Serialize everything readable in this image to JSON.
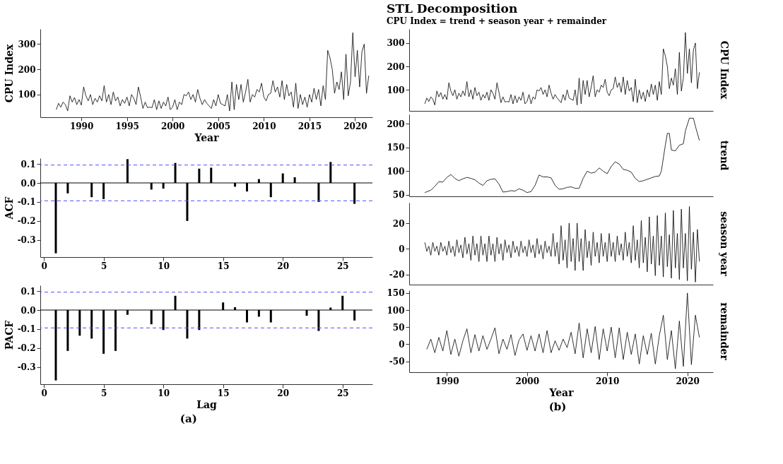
{
  "chart_data": [
    {
      "type": "line",
      "ylabel": "CPU Index",
      "xlabel": "Year",
      "color": "#000000",
      "xlim": [
        1985.5,
        2021.9
      ],
      "xticks": [
        1990,
        1995,
        2000,
        2005,
        2010,
        2015,
        2020
      ],
      "ylim": [
        10,
        360
      ],
      "yticks": [
        100,
        200,
        300
      ],
      "x": [
        1987.25,
        1987.5,
        1987.75,
        1988,
        1988.25,
        1988.5,
        1988.75,
        1989,
        1989.25,
        1989.5,
        1989.75,
        1990,
        1990.25,
        1990.5,
        1990.75,
        1991,
        1991.25,
        1991.5,
        1991.75,
        1992,
        1992.25,
        1992.5,
        1992.75,
        1993,
        1993.25,
        1993.5,
        1993.75,
        1994,
        1994.25,
        1994.5,
        1994.75,
        1995,
        1995.25,
        1995.5,
        1995.75,
        1996,
        1996.25,
        1996.5,
        1996.75,
        1997,
        1997.25,
        1997.5,
        1997.75,
        1998,
        1998.25,
        1998.5,
        1998.75,
        1999,
        1999.25,
        1999.5,
        1999.75,
        2000,
        2000.25,
        2000.5,
        2000.75,
        2001,
        2001.25,
        2001.5,
        2001.75,
        2002,
        2002.25,
        2002.5,
        2002.75,
        2003,
        2003.25,
        2003.5,
        2003.75,
        2004,
        2004.25,
        2004.5,
        2004.75,
        2005,
        2005.25,
        2005.5,
        2005.75,
        2006,
        2006.25,
        2006.5,
        2006.75,
        2007,
        2007.25,
        2007.5,
        2007.75,
        2008,
        2008.25,
        2008.5,
        2008.75,
        2009,
        2009.25,
        2009.5,
        2009.75,
        2010,
        2010.25,
        2010.5,
        2010.75,
        2011,
        2011.25,
        2011.5,
        2011.75,
        2012,
        2012.25,
        2012.5,
        2012.75,
        2013,
        2013.25,
        2013.5,
        2013.75,
        2014,
        2014.25,
        2014.5,
        2014.75,
        2015,
        2015.25,
        2015.5,
        2015.75,
        2016,
        2016.25,
        2016.5,
        2016.75,
        2017,
        2017.25,
        2017.5,
        2017.75,
        2018,
        2018.25,
        2018.5,
        2018.75,
        2019,
        2019.25,
        2019.5,
        2019.75,
        2020,
        2020.25,
        2020.5,
        2020.75,
        2021,
        2021.25,
        2021.5
      ],
      "values": [
        40,
        65,
        50,
        70,
        60,
        35,
        95,
        70,
        88,
        60,
        80,
        58,
        130,
        95,
        75,
        100,
        60,
        85,
        70,
        95,
        75,
        135,
        70,
        100,
        60,
        110,
        75,
        90,
        55,
        80,
        65,
        90,
        55,
        100,
        85,
        60,
        130,
        90,
        45,
        70,
        48,
        50,
        48,
        80,
        40,
        75,
        45,
        70,
        55,
        90,
        40,
        50,
        80,
        40,
        70,
        60,
        100,
        95,
        110,
        80,
        100,
        70,
        120,
        85,
        60,
        80,
        65,
        55,
        45,
        80,
        55,
        100,
        65,
        60,
        55,
        100,
        35,
        150,
        40,
        140,
        80,
        140,
        70,
        110,
        160,
        70,
        100,
        90,
        120,
        110,
        145,
        90,
        75,
        100,
        105,
        155,
        110,
        130,
        90,
        155,
        80,
        140,
        95,
        110,
        50,
        145,
        45,
        100,
        60,
        90,
        50,
        100,
        70,
        125,
        80,
        120,
        55,
        135,
        80,
        275,
        245,
        200,
        105,
        150,
        120,
        190,
        80,
        260,
        95,
        150,
        345,
        170,
        275,
        130,
        270,
        300,
        105,
        175
      ]
    },
    {
      "type": "bar",
      "ylabel": "ACF",
      "color": "#000000",
      "xlim": [
        -0.3,
        27.5
      ],
      "xticks": [
        0,
        5,
        10,
        15,
        20,
        25
      ],
      "ylim": [
        -0.39,
        0.13
      ],
      "yticks": [
        -0.3,
        -0.2,
        -0.1,
        {
          "value": 0,
          "label": "0.0"
        },
        0.1
      ],
      "x": [
        1,
        2,
        3,
        4,
        5,
        6,
        7,
        8,
        9,
        10,
        11,
        12,
        13,
        14,
        15,
        16,
        17,
        18,
        19,
        20,
        21,
        22,
        23,
        24,
        25,
        26
      ],
      "values": [
        -0.37,
        -0.055,
        0,
        -0.075,
        -0.085,
        0,
        0.125,
        0,
        -0.035,
        -0.03,
        0.105,
        -0.2,
        0.075,
        0.08,
        0,
        -0.02,
        -0.045,
        0.02,
        -0.075,
        0.05,
        0.03,
        0,
        -0.1,
        0.11,
        0,
        -0.11
      ],
      "ref_lines": [
        {
          "axis": "y",
          "value": 0,
          "color": "#000000",
          "line_style": "solid"
        },
        {
          "axis": "y",
          "value": 0.094,
          "color": "#4d4dff",
          "line_style": "dashed"
        },
        {
          "axis": "y",
          "value": -0.094,
          "color": "#4d4dff",
          "line_style": "dashed"
        }
      ]
    },
    {
      "type": "bar",
      "ylabel": "PACF",
      "xlabel": "Lag",
      "color": "#000000",
      "xlim": [
        -0.3,
        27.5
      ],
      "xticks": [
        0,
        5,
        10,
        15,
        20,
        25
      ],
      "ylim": [
        -0.39,
        0.13
      ],
      "yticks": [
        -0.3,
        -0.2,
        -0.1,
        {
          "value": 0,
          "label": "0.0"
        },
        0.1
      ],
      "x": [
        1,
        2,
        3,
        4,
        5,
        6,
        7,
        8,
        9,
        10,
        11,
        12,
        13,
        14,
        15,
        16,
        17,
        18,
        19,
        20,
        21,
        22,
        23,
        24,
        25,
        26
      ],
      "values": [
        -0.37,
        -0.215,
        -0.135,
        -0.15,
        -0.23,
        -0.215,
        -0.025,
        0,
        -0.075,
        -0.105,
        0.075,
        -0.15,
        -0.105,
        0,
        0.04,
        0.015,
        -0.065,
        -0.035,
        -0.065,
        0,
        0,
        -0.03,
        -0.11,
        0.013,
        0.075,
        -0.055
      ],
      "ref_lines": [
        {
          "axis": "y",
          "value": 0,
          "color": "#000000",
          "line_style": "solid"
        },
        {
          "axis": "y",
          "value": 0.094,
          "color": "#4d4dff",
          "line_style": "dashed"
        },
        {
          "axis": "y",
          "value": -0.094,
          "color": "#4d4dff",
          "line_style": "dashed"
        }
      ],
      "annotations": [
        "(a)"
      ]
    },
    {
      "type": "line",
      "title": "STL Decomposition",
      "subtitle": "CPU Index = trend + season year + remainder",
      "ylabel": "CPU Index",
      "color": "#000000",
      "xlim": [
        1985.3,
        2023.2
      ],
      "xticks": [
        1990,
        2000,
        2010,
        2020
      ],
      "ylim": [
        10,
        360
      ],
      "yticks": [
        100,
        200,
        300
      ],
      "tick_labels": "y",
      "x": [
        1987.25,
        1987.5,
        1987.75,
        1988,
        1988.25,
        1988.5,
        1988.75,
        1989,
        1989.25,
        1989.5,
        1989.75,
        1990,
        1990.25,
        1990.5,
        1990.75,
        1991,
        1991.25,
        1991.5,
        1991.75,
        1992,
        1992.25,
        1992.5,
        1992.75,
        1993,
        1993.25,
        1993.5,
        1993.75,
        1994,
        1994.25,
        1994.5,
        1994.75,
        1995,
        1995.25,
        1995.5,
        1995.75,
        1996,
        1996.25,
        1996.5,
        1996.75,
        1997,
        1997.25,
        1997.5,
        1997.75,
        1998,
        1998.25,
        1998.5,
        1998.75,
        1999,
        1999.25,
        1999.5,
        1999.75,
        2000,
        2000.25,
        2000.5,
        2000.75,
        2001,
        2001.25,
        2001.5,
        2001.75,
        2002,
        2002.25,
        2002.5,
        2002.75,
        2003,
        2003.25,
        2003.5,
        2003.75,
        2004,
        2004.25,
        2004.5,
        2004.75,
        2005,
        2005.25,
        2005.5,
        2005.75,
        2006,
        2006.25,
        2006.5,
        2006.75,
        2007,
        2007.25,
        2007.5,
        2007.75,
        2008,
        2008.25,
        2008.5,
        2008.75,
        2009,
        2009.25,
        2009.5,
        2009.75,
        2010,
        2010.25,
        2010.5,
        2010.75,
        2011,
        2011.25,
        2011.5,
        2011.75,
        2012,
        2012.25,
        2012.5,
        2012.75,
        2013,
        2013.25,
        2013.5,
        2013.75,
        2014,
        2014.25,
        2014.5,
        2014.75,
        2015,
        2015.25,
        2015.5,
        2015.75,
        2016,
        2016.25,
        2016.5,
        2016.75,
        2017,
        2017.25,
        2017.5,
        2017.75,
        2018,
        2018.25,
        2018.5,
        2018.75,
        2019,
        2019.25,
        2019.5,
        2019.75,
        2020,
        2020.25,
        2020.5,
        2020.75,
        2021,
        2021.25,
        2021.5
      ],
      "values": [
        40,
        65,
        50,
        70,
        60,
        35,
        95,
        70,
        88,
        60,
        80,
        58,
        130,
        95,
        75,
        100,
        60,
        85,
        70,
        95,
        75,
        135,
        70,
        100,
        60,
        110,
        75,
        90,
        55,
        80,
        65,
        90,
        55,
        100,
        85,
        60,
        130,
        90,
        45,
        70,
        48,
        50,
        48,
        80,
        40,
        75,
        45,
        70,
        55,
        90,
        40,
        50,
        80,
        40,
        70,
        60,
        100,
        95,
        110,
        80,
        100,
        70,
        120,
        85,
        60,
        80,
        65,
        55,
        45,
        80,
        55,
        100,
        65,
        60,
        55,
        100,
        35,
        150,
        40,
        140,
        80,
        140,
        70,
        110,
        160,
        70,
        100,
        90,
        120,
        110,
        145,
        90,
        75,
        100,
        105,
        155,
        110,
        130,
        90,
        155,
        80,
        140,
        95,
        110,
        50,
        145,
        45,
        100,
        60,
        90,
        50,
        100,
        70,
        125,
        80,
        120,
        55,
        135,
        80,
        275,
        245,
        200,
        105,
        150,
        120,
        190,
        80,
        260,
        95,
        150,
        345,
        170,
        275,
        130,
        270,
        300,
        105,
        175
      ]
    },
    {
      "type": "line",
      "ylabel": "trend",
      "color": "#000000",
      "xlim": [
        1985.3,
        2023.2
      ],
      "xticks": [
        1990,
        2000,
        2010,
        2020
      ],
      "ylim": [
        47,
        220
      ],
      "yticks": [
        50,
        100,
        150,
        200
      ],
      "tick_labels": "y",
      "x": [
        1987.25,
        1988,
        1988.5,
        1989,
        1989.5,
        1990,
        1990.5,
        1991,
        1991.5,
        1992,
        1992.5,
        1993,
        1993.5,
        1994,
        1994.5,
        1995,
        1995.5,
        1996,
        1996.5,
        1997,
        1997.5,
        1998,
        1998.5,
        1999,
        1999.5,
        2000,
        2000.5,
        2001,
        2001.5,
        2002,
        2002.5,
        2003,
        2003.5,
        2004,
        2004.5,
        2005,
        2005.5,
        2006,
        2006.5,
        2007,
        2007.5,
        2008,
        2008.5,
        2009,
        2009.5,
        2010,
        2010.5,
        2011,
        2011.5,
        2012,
        2012.5,
        2013,
        2013.5,
        2014,
        2014.5,
        2015,
        2015.5,
        2016,
        2016.5,
        2016.75,
        2017.25,
        2017.5,
        2017.75,
        2018,
        2018.5,
        2019,
        2019.5,
        2019.75,
        2020.25,
        2020.75,
        2021,
        2021.5
      ],
      "values": [
        55,
        60,
        68,
        78,
        77,
        87,
        93,
        85,
        80,
        84,
        87,
        85,
        82,
        75,
        70,
        80,
        83,
        84,
        73,
        56,
        57,
        59,
        58,
        63,
        60,
        55,
        57,
        70,
        92,
        88,
        88,
        86,
        70,
        62,
        63,
        66,
        67,
        64,
        64,
        85,
        100,
        96,
        98,
        107,
        100,
        95,
        110,
        120,
        115,
        104,
        102,
        98,
        85,
        78,
        80,
        83,
        86,
        89,
        90,
        100,
        155,
        180,
        180,
        145,
        143,
        155,
        158,
        185,
        212,
        212,
        195,
        165
      ]
    },
    {
      "type": "line",
      "ylabel": "season year",
      "color": "#000000",
      "xlim": [
        1985.3,
        2023.2
      ],
      "xticks": [
        1990,
        2000,
        2010,
        2020
      ],
      "ylim": [
        -28,
        36
      ],
      "yticks": [
        -20,
        0,
        20
      ],
      "tick_labels": "y",
      "x": [
        1987.25,
        1987.5,
        1987.75,
        1988,
        1988.25,
        1988.5,
        1988.75,
        1989,
        1989.25,
        1989.5,
        1989.75,
        1990,
        1990.25,
        1990.5,
        1990.75,
        1991,
        1991.25,
        1991.5,
        1991.75,
        1992,
        1992.25,
        1992.5,
        1992.75,
        1993,
        1993.25,
        1993.5,
        1993.75,
        1994,
        1994.25,
        1994.5,
        1994.75,
        1995,
        1995.25,
        1995.5,
        1995.75,
        1996,
        1996.25,
        1996.5,
        1996.75,
        1997,
        1997.25,
        1997.5,
        1997.75,
        1998,
        1998.25,
        1998.5,
        1998.75,
        1999,
        1999.25,
        1999.5,
        1999.75,
        2000,
        2000.25,
        2000.5,
        2000.75,
        2001,
        2001.25,
        2001.5,
        2001.75,
        2002,
        2002.25,
        2002.5,
        2002.75,
        2003,
        2003.25,
        2003.5,
        2003.75,
        2004,
        2004.25,
        2004.5,
        2004.75,
        2005,
        2005.25,
        2005.5,
        2005.75,
        2006,
        2006.25,
        2006.5,
        2006.75,
        2007,
        2007.25,
        2007.5,
        2007.75,
        2008,
        2008.25,
        2008.5,
        2008.75,
        2009,
        2009.25,
        2009.5,
        2009.75,
        2010,
        2010.25,
        2010.5,
        2010.75,
        2011,
        2011.25,
        2011.5,
        2011.75,
        2012,
        2012.25,
        2012.5,
        2012.75,
        2013,
        2013.25,
        2013.5,
        2013.75,
        2014,
        2014.25,
        2014.5,
        2014.75,
        2015,
        2015.25,
        2015.5,
        2015.75,
        2016,
        2016.25,
        2016.5,
        2016.75,
        2017,
        2017.25,
        2017.5,
        2017.75,
        2018,
        2018.25,
        2018.5,
        2018.75,
        2019,
        2019.25,
        2019.5,
        2019.75,
        2020,
        2020.25,
        2020.5,
        2020.75,
        2021,
        2021.25,
        2021.5
      ],
      "values": [
        5,
        -2,
        2,
        -5,
        5,
        -2,
        2,
        -5,
        5,
        -2,
        2,
        -5,
        6,
        -3,
        2,
        -6,
        7,
        -3,
        3,
        -7,
        9,
        -4,
        4,
        -9,
        10,
        -5,
        4,
        -10,
        10,
        -5,
        4,
        -10,
        10,
        -5,
        4,
        -10,
        9,
        -4,
        4,
        -9,
        7,
        -3,
        3,
        -7,
        6,
        -3,
        2,
        -6,
        6,
        -3,
        2,
        -6,
        7,
        -3,
        3,
        -7,
        8,
        -4,
        3,
        -8,
        6,
        -3,
        2,
        -6,
        12,
        -6,
        5,
        -12,
        18,
        -9,
        7,
        -15,
        20,
        -10,
        8,
        -17,
        20,
        -10,
        8,
        -17,
        15,
        -7,
        6,
        -13,
        13,
        -6,
        5,
        -11,
        12,
        -6,
        5,
        -10,
        12,
        -6,
        5,
        -10,
        10,
        -5,
        4,
        -9,
        13,
        -6,
        5,
        -11,
        18,
        -9,
        7,
        -15,
        22,
        -11,
        9,
        -18,
        25,
        -12,
        10,
        -21,
        26,
        -13,
        10,
        -22,
        28,
        -14,
        11,
        -23,
        30,
        -15,
        12,
        -24,
        31,
        -15,
        12,
        -25,
        33,
        -16,
        13,
        -26,
        15,
        -10
      ]
    },
    {
      "type": "line",
      "ylabel": "remainder",
      "xlabel": "Year",
      "color": "#000000",
      "xlim": [
        1985.3,
        2023.2
      ],
      "xticks": [
        1990,
        2000,
        2010,
        2020
      ],
      "ylim": [
        -82,
        158
      ],
      "yticks": [
        -50,
        0,
        50,
        100,
        150
      ],
      "x": [
        1987.5,
        1988,
        1988.5,
        1989,
        1989.5,
        1990,
        1990.5,
        1991,
        1991.5,
        1992,
        1992.5,
        1993,
        1993.5,
        1994,
        1994.5,
        1995,
        1995.5,
        1996,
        1996.5,
        1997,
        1997.5,
        1998,
        1998.5,
        1999,
        1999.5,
        2000,
        2000.5,
        2001,
        2001.5,
        2002,
        2002.5,
        2003,
        2003.5,
        2004,
        2004.5,
        2005,
        2005.5,
        2006,
        2006.5,
        2007,
        2007.5,
        2008,
        2008.5,
        2009,
        2009.5,
        2010,
        2010.5,
        2011,
        2011.5,
        2012,
        2012.5,
        2013,
        2013.5,
        2014,
        2014.5,
        2015,
        2015.5,
        2016,
        2016.5,
        2017,
        2017.5,
        2018,
        2018.5,
        2019,
        2019.5,
        2020,
        2020.5,
        2021,
        2021.5
      ],
      "values": [
        -15,
        15,
        -25,
        20,
        -20,
        40,
        -30,
        15,
        -35,
        10,
        45,
        -25,
        28,
        -20,
        25,
        -15,
        15,
        48,
        -28,
        15,
        -15,
        28,
        -33,
        12,
        30,
        -18,
        25,
        -20,
        30,
        -25,
        40,
        -25,
        10,
        -18,
        15,
        -10,
        35,
        -28,
        62,
        -40,
        45,
        -25,
        52,
        -45,
        45,
        -20,
        50,
        -40,
        48,
        -45,
        35,
        -30,
        30,
        -58,
        25,
        -30,
        32,
        -58,
        25,
        85,
        -45,
        40,
        -72,
        68,
        -65,
        150,
        -60,
        85,
        20
      ],
      "annotations": [
        "(b)"
      ]
    }
  ]
}
